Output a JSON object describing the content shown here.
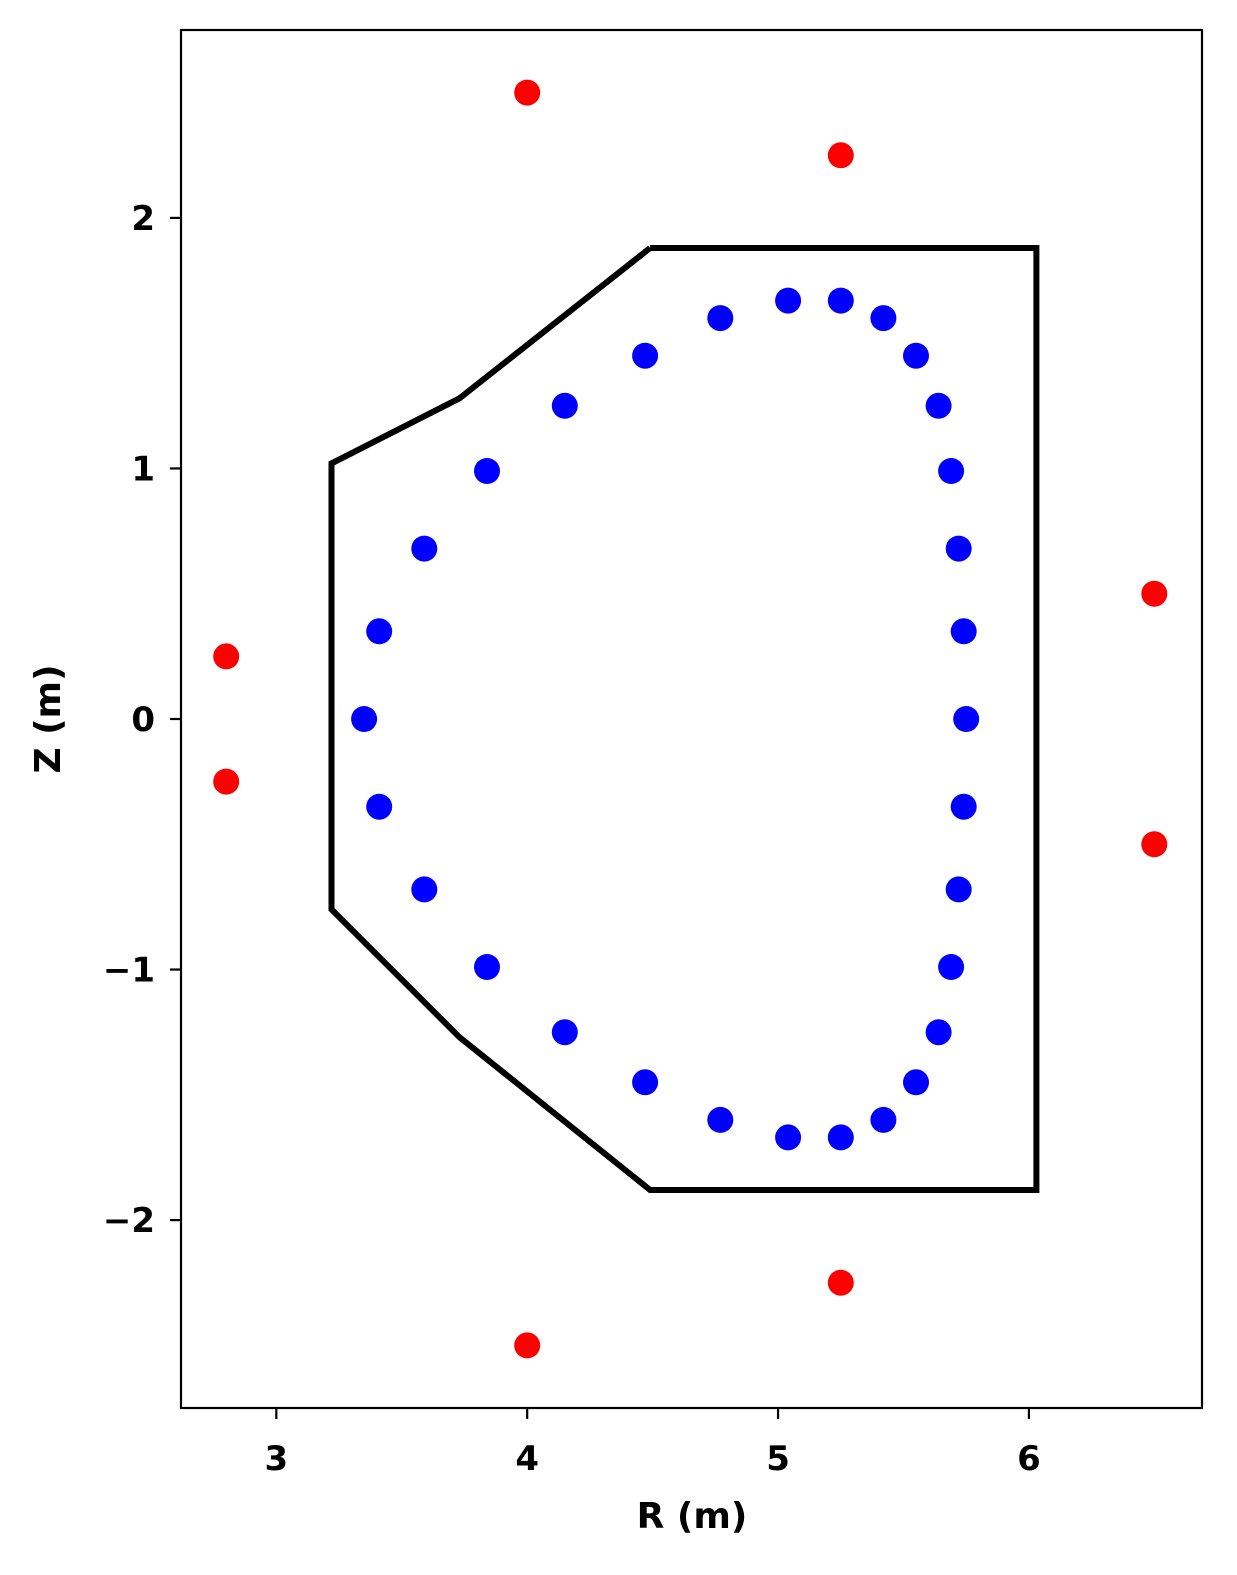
{
  "chart_data": {
    "type": "scatter",
    "title": "",
    "xlabel": "R (m)",
    "ylabel": "Z (m)",
    "xlim": [
      2.62,
      6.69
    ],
    "ylim": [
      -2.75,
      2.75
    ],
    "xticks": [
      3,
      4,
      5,
      6
    ],
    "yticks": [
      -2,
      -1,
      0,
      1,
      2
    ],
    "xtick_labels": [
      "3",
      "4",
      "5",
      "6"
    ],
    "ytick_labels": [
      "−2",
      "−1",
      "0",
      "1",
      "2"
    ],
    "grid": false,
    "legend": "none",
    "boundary": {
      "color": "#000000",
      "points": [
        [
          4.49,
          1.88
        ],
        [
          6.03,
          1.88
        ],
        [
          6.03,
          -1.88
        ],
        [
          4.49,
          -1.88
        ],
        [
          3.73,
          -1.27
        ],
        [
          3.22,
          -0.76
        ],
        [
          3.22,
          1.02
        ],
        [
          3.73,
          1.28
        ],
        [
          4.49,
          1.88
        ]
      ]
    },
    "series": [
      {
        "color": "#ff0000",
        "points": [
          [
            4.0,
            2.5
          ],
          [
            5.25,
            2.25
          ],
          [
            2.8,
            0.25
          ],
          [
            2.8,
            -0.25
          ],
          [
            6.5,
            0.5
          ],
          [
            6.5,
            -0.5
          ],
          [
            5.25,
            -2.25
          ],
          [
            4.0,
            -2.5
          ]
        ]
      },
      {
        "color": "#0000ff",
        "points": [
          [
            5.04,
            1.67
          ],
          [
            5.25,
            1.67
          ],
          [
            4.77,
            1.6
          ],
          [
            5.42,
            1.6
          ],
          [
            4.47,
            1.45
          ],
          [
            5.55,
            1.45
          ],
          [
            4.15,
            1.25
          ],
          [
            5.64,
            1.25
          ],
          [
            3.84,
            0.99
          ],
          [
            5.69,
            0.99
          ],
          [
            3.59,
            0.68
          ],
          [
            5.72,
            0.68
          ],
          [
            3.41,
            0.35
          ],
          [
            5.74,
            0.35
          ],
          [
            3.35,
            0.0
          ],
          [
            5.75,
            0.0
          ],
          [
            3.41,
            -0.35
          ],
          [
            5.74,
            -0.35
          ],
          [
            3.59,
            -0.68
          ],
          [
            5.72,
            -0.68
          ],
          [
            3.84,
            -0.99
          ],
          [
            5.69,
            -0.99
          ],
          [
            4.15,
            -1.25
          ],
          [
            5.64,
            -1.25
          ],
          [
            4.47,
            -1.45
          ],
          [
            5.55,
            -1.45
          ],
          [
            4.77,
            -1.6
          ],
          [
            5.42,
            -1.6
          ],
          [
            5.04,
            -1.67
          ],
          [
            5.25,
            -1.67
          ]
        ]
      }
    ]
  }
}
